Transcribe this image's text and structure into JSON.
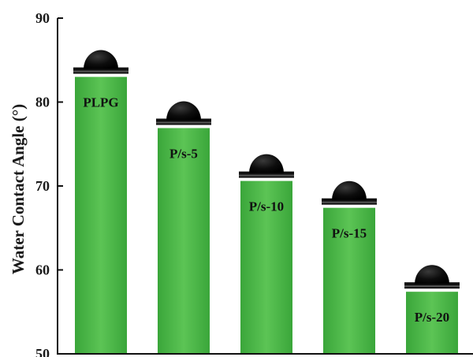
{
  "chart_data": {
    "type": "bar",
    "ylabel": "Water Contact Angle (°)",
    "xlabel": "",
    "ylim": [
      50,
      90
    ],
    "yticks": [
      50,
      60,
      70,
      80,
      90
    ],
    "categories": [
      "PLPG",
      "P/s-5",
      "P/s-10",
      "P/s-15",
      "P/s-20"
    ],
    "values": [
      83.0,
      76.9,
      70.6,
      67.4,
      57.4
    ],
    "bar_labels": [
      "PLPG",
      "P/s-5",
      "P/s-10",
      "P/s-15",
      "P/s-20"
    ],
    "droplet_icons": [
      "water-droplet-icon",
      "water-droplet-icon",
      "water-droplet-icon",
      "water-droplet-icon",
      "water-droplet-icon"
    ],
    "colors": {
      "bar": "#4db848",
      "bar_edge": "#2f9a2c",
      "axis": "#111111",
      "droplet": "#0b0b0b"
    },
    "grid": false,
    "legend": "none"
  }
}
